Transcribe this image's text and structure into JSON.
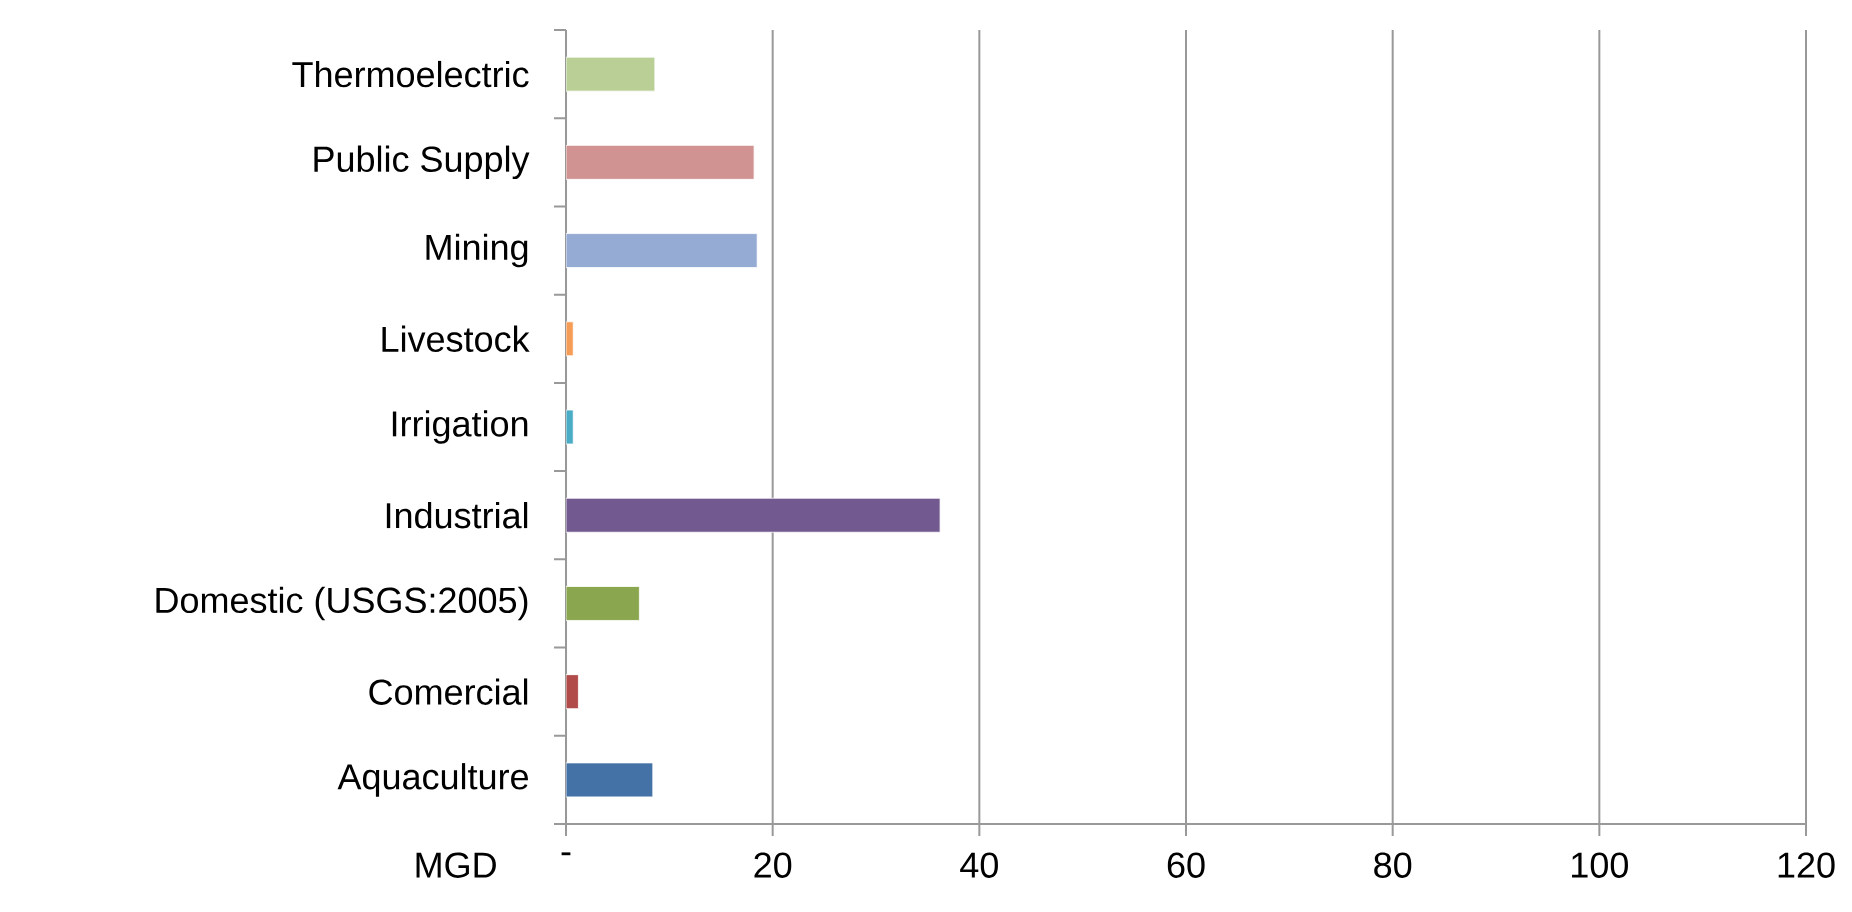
{
  "chart_data": {
    "type": "bar",
    "orientation": "horizontal",
    "xlabel": "MGD",
    "categories": [
      "Thermoelectric",
      "Public Supply",
      "Mining",
      "Livestock",
      "Irrigation",
      "Industrial",
      "Domestic (USGS:2005)",
      "Comercial",
      "Aquaculture"
    ],
    "values": [
      8.6,
      18.2,
      18.5,
      0.7,
      0.7,
      36.2,
      7.1,
      1.2,
      8.4
    ],
    "colors": [
      "#b9cf96",
      "#d09392",
      "#95abd3",
      "#f59d56",
      "#4bacc6",
      "#725990",
      "#8aa64f",
      "#b04b49",
      "#4471a6"
    ],
    "xlim": [
      0,
      120
    ],
    "xticks": [
      {
        "value": 0,
        "label": "-"
      },
      20,
      40,
      60,
      80,
      100,
      120
    ],
    "grid": "x"
  }
}
